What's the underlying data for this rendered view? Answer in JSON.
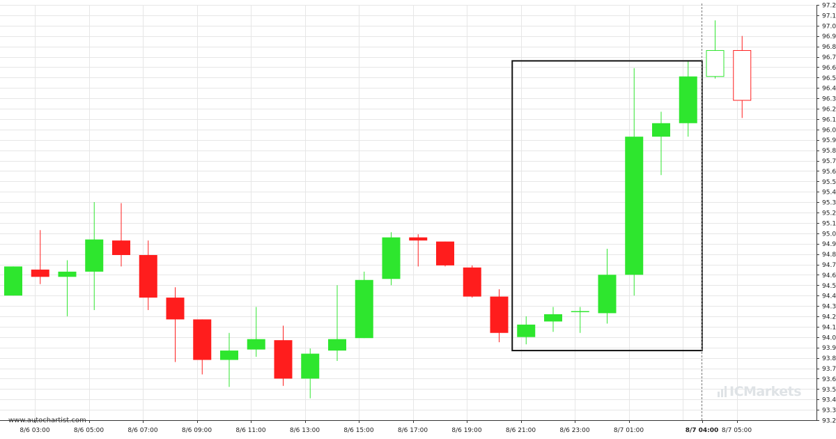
{
  "watermark": "www.autochartist.com",
  "brand": "ICMarkets",
  "colors": {
    "bull": "#2ee62e",
    "bear": "#ff1d1d",
    "box": "#111111",
    "grid": "#e6e6e6"
  },
  "chart_data": {
    "type": "candlestick",
    "y_ticks": [
      "97.2694",
      "97.1694",
      "97.0694",
      "96.9694",
      "96.8694",
      "96.7694",
      "96.6694",
      "96.5694",
      "96.4694",
      "96.3694",
      "96.2694",
      "96.1694",
      "96.0694",
      "95.9694",
      "95.8694",
      "95.7694",
      "95.6694",
      "95.5694",
      "95.4694",
      "95.3694",
      "95.2694",
      "95.1694",
      "95.0694",
      "94.9694",
      "94.8694",
      "94.7694",
      "94.6694",
      "94.5694",
      "94.4694",
      "94.3694",
      "94.2694",
      "94.1694",
      "94.0694",
      "93.9694",
      "93.8694",
      "93.7694",
      "93.6694",
      "93.5694",
      "93.4694",
      "93.3694",
      "93.2694"
    ],
    "ylim": [
      93.2694,
      97.2694
    ],
    "x_labels": [
      "8/6 03:00",
      "8/6 05:00",
      "8/6 07:00",
      "8/6 09:00",
      "8/6 11:00",
      "8/6 13:00",
      "8/6 15:00",
      "8/6 17:00",
      "8/6 19:00",
      "8/6 21:00",
      "8/6 23:00",
      "8/7 01:00",
      "8/7 04:00",
      "8/7 05:00"
    ],
    "x_label_bold": "8/7 04:00",
    "candles": [
      {
        "open": 94.47,
        "high": 94.75,
        "low": 94.47,
        "close": 94.75
      },
      {
        "open": 94.72,
        "high": 95.1,
        "low": 94.58,
        "close": 94.65
      },
      {
        "open": 94.65,
        "high": 94.81,
        "low": 94.27,
        "close": 94.7
      },
      {
        "open": 94.7,
        "high": 95.37,
        "low": 94.33,
        "close": 95.01
      },
      {
        "open": 95.0,
        "high": 95.36,
        "low": 94.75,
        "close": 94.86
      },
      {
        "open": 94.86,
        "high": 95.0,
        "low": 94.33,
        "close": 94.45
      },
      {
        "open": 94.45,
        "high": 94.55,
        "low": 93.83,
        "close": 94.24
      },
      {
        "open": 94.24,
        "high": 94.24,
        "low": 93.71,
        "close": 93.85
      },
      {
        "open": 93.85,
        "high": 94.11,
        "low": 93.59,
        "close": 93.94
      },
      {
        "open": 93.95,
        "high": 94.36,
        "low": 93.88,
        "close": 94.05
      },
      {
        "open": 94.04,
        "high": 94.18,
        "low": 93.6,
        "close": 93.67
      },
      {
        "open": 93.67,
        "high": 93.96,
        "low": 93.48,
        "close": 93.91
      },
      {
        "open": 93.94,
        "high": 94.57,
        "low": 93.84,
        "close": 94.05
      },
      {
        "open": 94.06,
        "high": 94.7,
        "low": 94.06,
        "close": 94.62
      },
      {
        "open": 94.63,
        "high": 95.08,
        "low": 94.57,
        "close": 95.03
      },
      {
        "open": 95.03,
        "high": 95.06,
        "low": 94.75,
        "close": 95.0
      },
      {
        "open": 94.99,
        "high": 94.99,
        "low": 94.75,
        "close": 94.76
      },
      {
        "open": 94.74,
        "high": 94.76,
        "low": 94.45,
        "close": 94.46
      },
      {
        "open": 94.46,
        "high": 94.53,
        "low": 94.02,
        "close": 94.11
      },
      {
        "open": 94.07,
        "high": 94.27,
        "low": 94.0,
        "close": 94.19
      },
      {
        "open": 94.22,
        "high": 94.36,
        "low": 94.12,
        "close": 94.29
      },
      {
        "open": 94.31,
        "high": 94.36,
        "low": 94.11,
        "close": 94.32
      },
      {
        "open": 94.3,
        "high": 94.92,
        "low": 94.2,
        "close": 94.67
      },
      {
        "open": 94.67,
        "high": 96.66,
        "low": 94.47,
        "close": 96.0
      },
      {
        "open": 96.0,
        "high": 96.24,
        "low": 95.63,
        "close": 96.13
      },
      {
        "open": 96.13,
        "high": 96.73,
        "low": 96.0,
        "close": 96.58
      },
      {
        "open": 96.58,
        "high": 97.12,
        "low": 96.56,
        "close": 96.83,
        "hollow": true
      },
      {
        "open": 96.83,
        "high": 96.97,
        "low": 96.18,
        "close": 96.35,
        "hollow": true
      }
    ],
    "pattern_box": {
      "from_candle": 19,
      "to_candle": 25,
      "top": 96.73,
      "bottom": 93.94
    },
    "marker_line_label": "8/7 04:00",
    "grid": true
  }
}
